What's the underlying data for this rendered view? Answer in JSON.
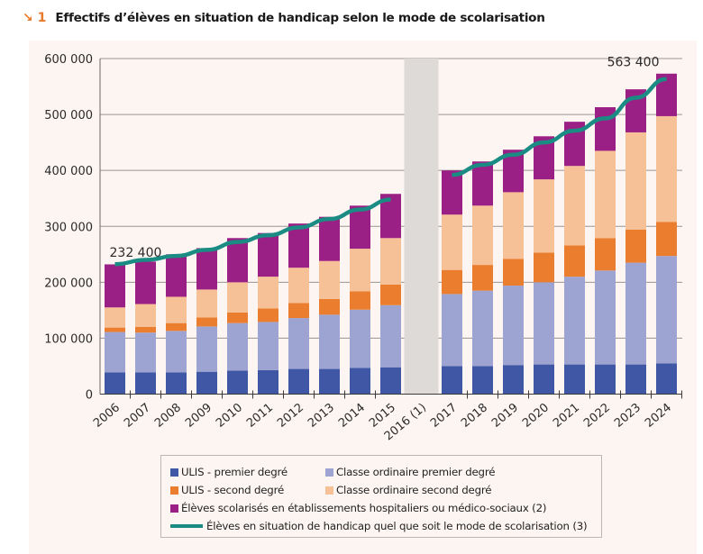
{
  "header": {
    "figure_number": "↘ 1",
    "title": "Effectifs d’élèves en situation de handicap selon le mode de scolarisation"
  },
  "colors": {
    "ulis_premier": "#3f57a4",
    "classe_premier": "#9ea4d2",
    "ulis_second": "#eb7d2f",
    "classe_second": "#f6c197",
    "etablissements": "#9b2085",
    "total_line": "#1a8c83",
    "gap_band": "#dedad7",
    "panel": "#fdf5f2",
    "title_accent": "#e8792b"
  },
  "chart_data": {
    "type": "bar",
    "stacked": true,
    "title": "Effectifs d’élèves en situation de handicap selon le mode de scolarisation",
    "xlabel": "",
    "ylabel": "",
    "ylim": [
      0,
      600000
    ],
    "yticks": [
      0,
      100000,
      200000,
      300000,
      400000,
      500000,
      600000
    ],
    "ytick_labels": [
      "0",
      "100 000",
      "200 000",
      "300 000",
      "400 000",
      "500 000",
      "600 000"
    ],
    "grid": true,
    "categories": [
      "2006",
      "2007",
      "2008",
      "2009",
      "2010",
      "2011",
      "2012",
      "2013",
      "2014",
      "2015",
      "2016 (1)",
      "2017",
      "2018",
      "2019",
      "2020",
      "2021",
      "2022",
      "2023",
      "2024"
    ],
    "gap_category": "2016 (1)",
    "series": [
      {
        "key": "ulis_premier",
        "name": "ULIS - premier degré",
        "values": [
          39000,
          39000,
          39000,
          40000,
          42000,
          43000,
          45000,
          45000,
          47000,
          48000,
          null,
          50000,
          50000,
          52000,
          53000,
          53000,
          53000,
          53000,
          55000
        ]
      },
      {
        "key": "classe_premier",
        "name": "Classe ordinaire premier degré",
        "values": [
          72000,
          71000,
          74000,
          81000,
          85000,
          86000,
          91000,
          97000,
          104000,
          111000,
          null,
          129000,
          135000,
          142000,
          147000,
          157000,
          168000,
          182000,
          192000
        ]
      },
      {
        "key": "ulis_second",
        "name": "ULIS - second degré",
        "values": [
          8000,
          10000,
          14000,
          16000,
          19000,
          24000,
          27000,
          28000,
          33000,
          37000,
          null,
          43000,
          46000,
          48000,
          53000,
          56000,
          58000,
          59000,
          61000
        ]
      },
      {
        "key": "classe_second",
        "name": "Classe ordinaire second degré",
        "values": [
          36000,
          41000,
          47000,
          50000,
          54000,
          57000,
          63000,
          68000,
          76000,
          83000,
          null,
          99000,
          106000,
          119000,
          131000,
          142000,
          156000,
          174000,
          189000
        ]
      },
      {
        "key": "etablissements",
        "name": "Élèves scolarisés en établissements hospitaliers ou médico-sociaux (2)",
        "values": [
          77000,
          76000,
          76000,
          74000,
          79000,
          78000,
          79000,
          79000,
          77000,
          79000,
          null,
          79000,
          79000,
          76000,
          77000,
          79000,
          78000,
          77000,
          76000
        ]
      }
    ],
    "line_series": {
      "key": "total_line",
      "name": "Élèves en situation de handicap quel que soit le mode de scolarisation (3)",
      "values": [
        232400,
        240000,
        247000,
        258000,
        272000,
        284000,
        298000,
        313000,
        330000,
        348000,
        null,
        392000,
        410000,
        428000,
        450000,
        471000,
        493000,
        530000,
        563400
      ]
    },
    "annotations": [
      {
        "category": "2006",
        "text": "232 400"
      },
      {
        "category": "2024",
        "text": "563 400"
      }
    ],
    "legend_position": "bottom"
  },
  "legend": {
    "rows": [
      [
        {
          "key": "ulis_premier",
          "label": "ULIS - premier degré"
        },
        {
          "key": "classe_premier",
          "label": "Classe ordinaire premier degré"
        }
      ],
      [
        {
          "key": "ulis_second",
          "label": "ULIS - second degré"
        },
        {
          "key": "classe_second",
          "label": "Classe ordinaire second degré"
        }
      ],
      [
        {
          "key": "etablissements",
          "label": "Élèves scolarisés en établissements hospitaliers ou médico-sociaux (2)"
        }
      ]
    ],
    "line_label": "Élèves en situation de handicap quel que soit le mode de scolarisation (3)"
  }
}
